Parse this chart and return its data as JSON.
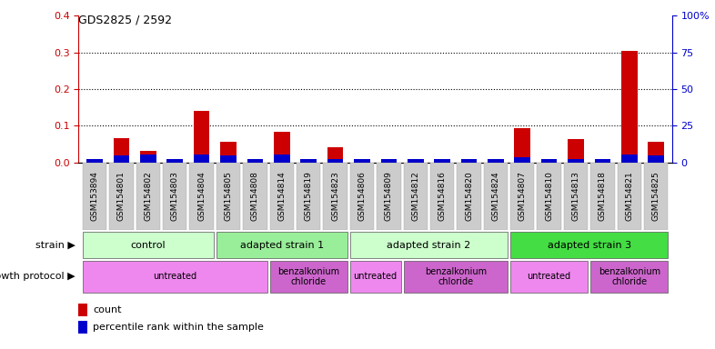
{
  "title": "GDS2825 / 2592",
  "samples": [
    "GSM153894",
    "GSM154801",
    "GSM154802",
    "GSM154803",
    "GSM154804",
    "GSM154805",
    "GSM154808",
    "GSM154814",
    "GSM154819",
    "GSM154823",
    "GSM154806",
    "GSM154809",
    "GSM154812",
    "GSM154816",
    "GSM154820",
    "GSM154824",
    "GSM154807",
    "GSM154810",
    "GSM154813",
    "GSM154818",
    "GSM154821",
    "GSM154825"
  ],
  "red_values": [
    0.005,
    0.065,
    0.03,
    0.008,
    0.14,
    0.055,
    0.01,
    0.083,
    0.008,
    0.04,
    0.008,
    0.008,
    0.008,
    0.008,
    0.008,
    0.008,
    0.093,
    0.008,
    0.063,
    0.008,
    0.305,
    0.055
  ],
  "blue_values": [
    0.008,
    0.018,
    0.02,
    0.008,
    0.022,
    0.018,
    0.01,
    0.02,
    0.008,
    0.008,
    0.008,
    0.008,
    0.008,
    0.008,
    0.008,
    0.008,
    0.015,
    0.008,
    0.008,
    0.008,
    0.022,
    0.018
  ],
  "strain_groups": [
    {
      "label": "control",
      "start": 0,
      "end": 4,
      "color": "#ccffcc"
    },
    {
      "label": "adapted strain 1",
      "start": 5,
      "end": 9,
      "color": "#99ee99"
    },
    {
      "label": "adapted strain 2",
      "start": 10,
      "end": 15,
      "color": "#ccffcc"
    },
    {
      "label": "adapted strain 3",
      "start": 16,
      "end": 21,
      "color": "#44dd44"
    }
  ],
  "protocol_groups": [
    {
      "label": "untreated",
      "start": 0,
      "end": 6,
      "color": "#ee88ee"
    },
    {
      "label": "benzalkonium\nchloride",
      "start": 7,
      "end": 9,
      "color": "#cc66cc"
    },
    {
      "label": "untreated",
      "start": 10,
      "end": 11,
      "color": "#ee88ee"
    },
    {
      "label": "benzalkonium\nchloride",
      "start": 12,
      "end": 15,
      "color": "#cc66cc"
    },
    {
      "label": "untreated",
      "start": 16,
      "end": 18,
      "color": "#ee88ee"
    },
    {
      "label": "benzalkonium\nchloride",
      "start": 19,
      "end": 21,
      "color": "#cc66cc"
    }
  ],
  "ylim_left": [
    0,
    0.4
  ],
  "ylim_right": [
    0,
    100
  ],
  "yticks_left": [
    0.0,
    0.1,
    0.2,
    0.3,
    0.4
  ],
  "yticks_right": [
    0,
    25,
    50,
    75,
    100
  ],
  "ytick_labels_right": [
    "0",
    "25",
    "50",
    "75",
    "100%"
  ],
  "left_tick_color": "#cc0000",
  "right_tick_color": "#0000cc",
  "red_color": "#cc0000",
  "blue_color": "#0000cc",
  "strain_label": "strain",
  "protocol_label": "growth protocol",
  "legend_red": "count",
  "legend_blue": "percentile rank within the sample",
  "tick_bg_color": "#cccccc"
}
